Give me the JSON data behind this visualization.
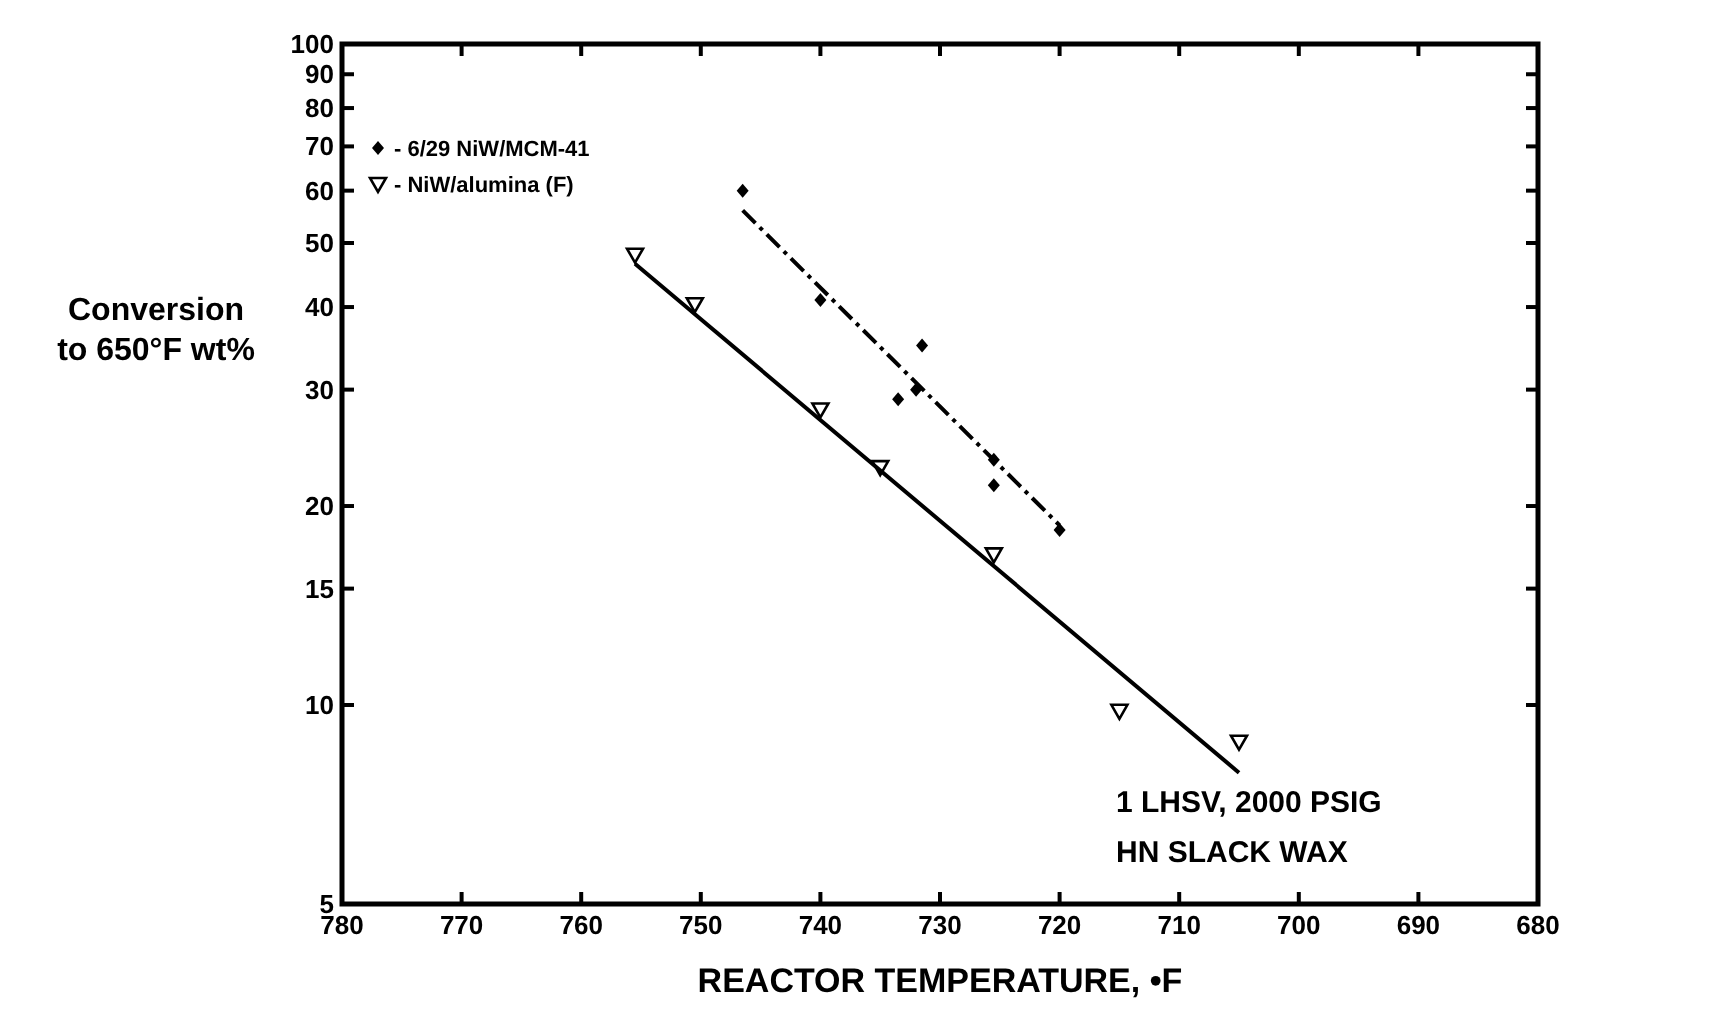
{
  "chart_data": {
    "type": "scatter",
    "xlabel": "REACTOR TEMPERATURE, •F",
    "ylabel": "Conversion\nto 650°F wt%",
    "log": "y",
    "xlim": [
      780,
      680
    ],
    "xticks": [
      780,
      770,
      760,
      750,
      740,
      730,
      720,
      710,
      700,
      690,
      680
    ],
    "ylim": [
      5,
      100
    ],
    "yticks": [
      5,
      10,
      15,
      20,
      30,
      40,
      50,
      60,
      70,
      80,
      90,
      100
    ],
    "grid": false,
    "legend": "top left",
    "annotations": [
      "1 LHSV, 2000 PSIG",
      "HN SLACK WAX"
    ],
    "series": [
      {
        "name": "- 6/29 NiW/MCM-41",
        "type": "scatter",
        "marker": "diamond",
        "color": "#000000",
        "x": [
          746.5,
          740,
          731.5,
          733.5,
          732,
          725.5,
          725.5,
          720
        ],
        "values": [
          60,
          41,
          35,
          29,
          30,
          23.5,
          21.5,
          18.4
        ]
      },
      {
        "name": "- NiW/alumina (F)",
        "type": "scatter",
        "marker": "triangle",
        "color": "#000000",
        "x": [
          755.5,
          750.5,
          740,
          735,
          725.5,
          715,
          705
        ],
        "values": [
          48,
          40.4,
          28,
          22.9,
          16.9,
          9.8,
          8.8
        ]
      },
      {
        "type": "line",
        "line_style": "dashed",
        "color": "#000000",
        "x": [
          746.5,
          720
        ],
        "values": [
          56,
          18.7
        ]
      },
      {
        "type": "line",
        "line_style": "solid",
        "color": "#000000",
        "x": [
          755.5,
          705
        ],
        "values": [
          46.5,
          7.9
        ]
      }
    ]
  }
}
